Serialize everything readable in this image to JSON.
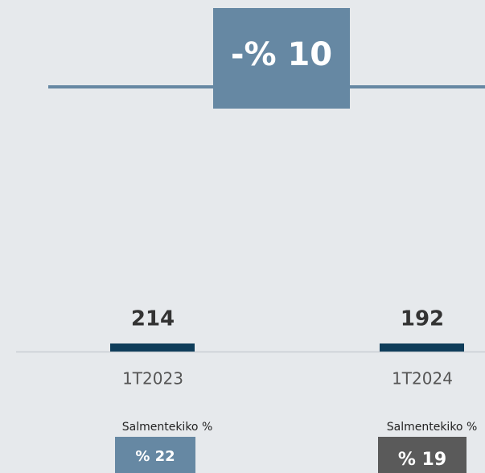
{
  "header": {
    "change": "-% 10"
  },
  "periods": [
    {
      "label": "1T2023",
      "value": 214,
      "metric_label": "Salmentekiko %",
      "metric": "% 22"
    },
    {
      "label": "1T2024",
      "value": 192,
      "metric_label": "Salmentekiko %",
      "metric": "% 19"
    }
  ]
}
